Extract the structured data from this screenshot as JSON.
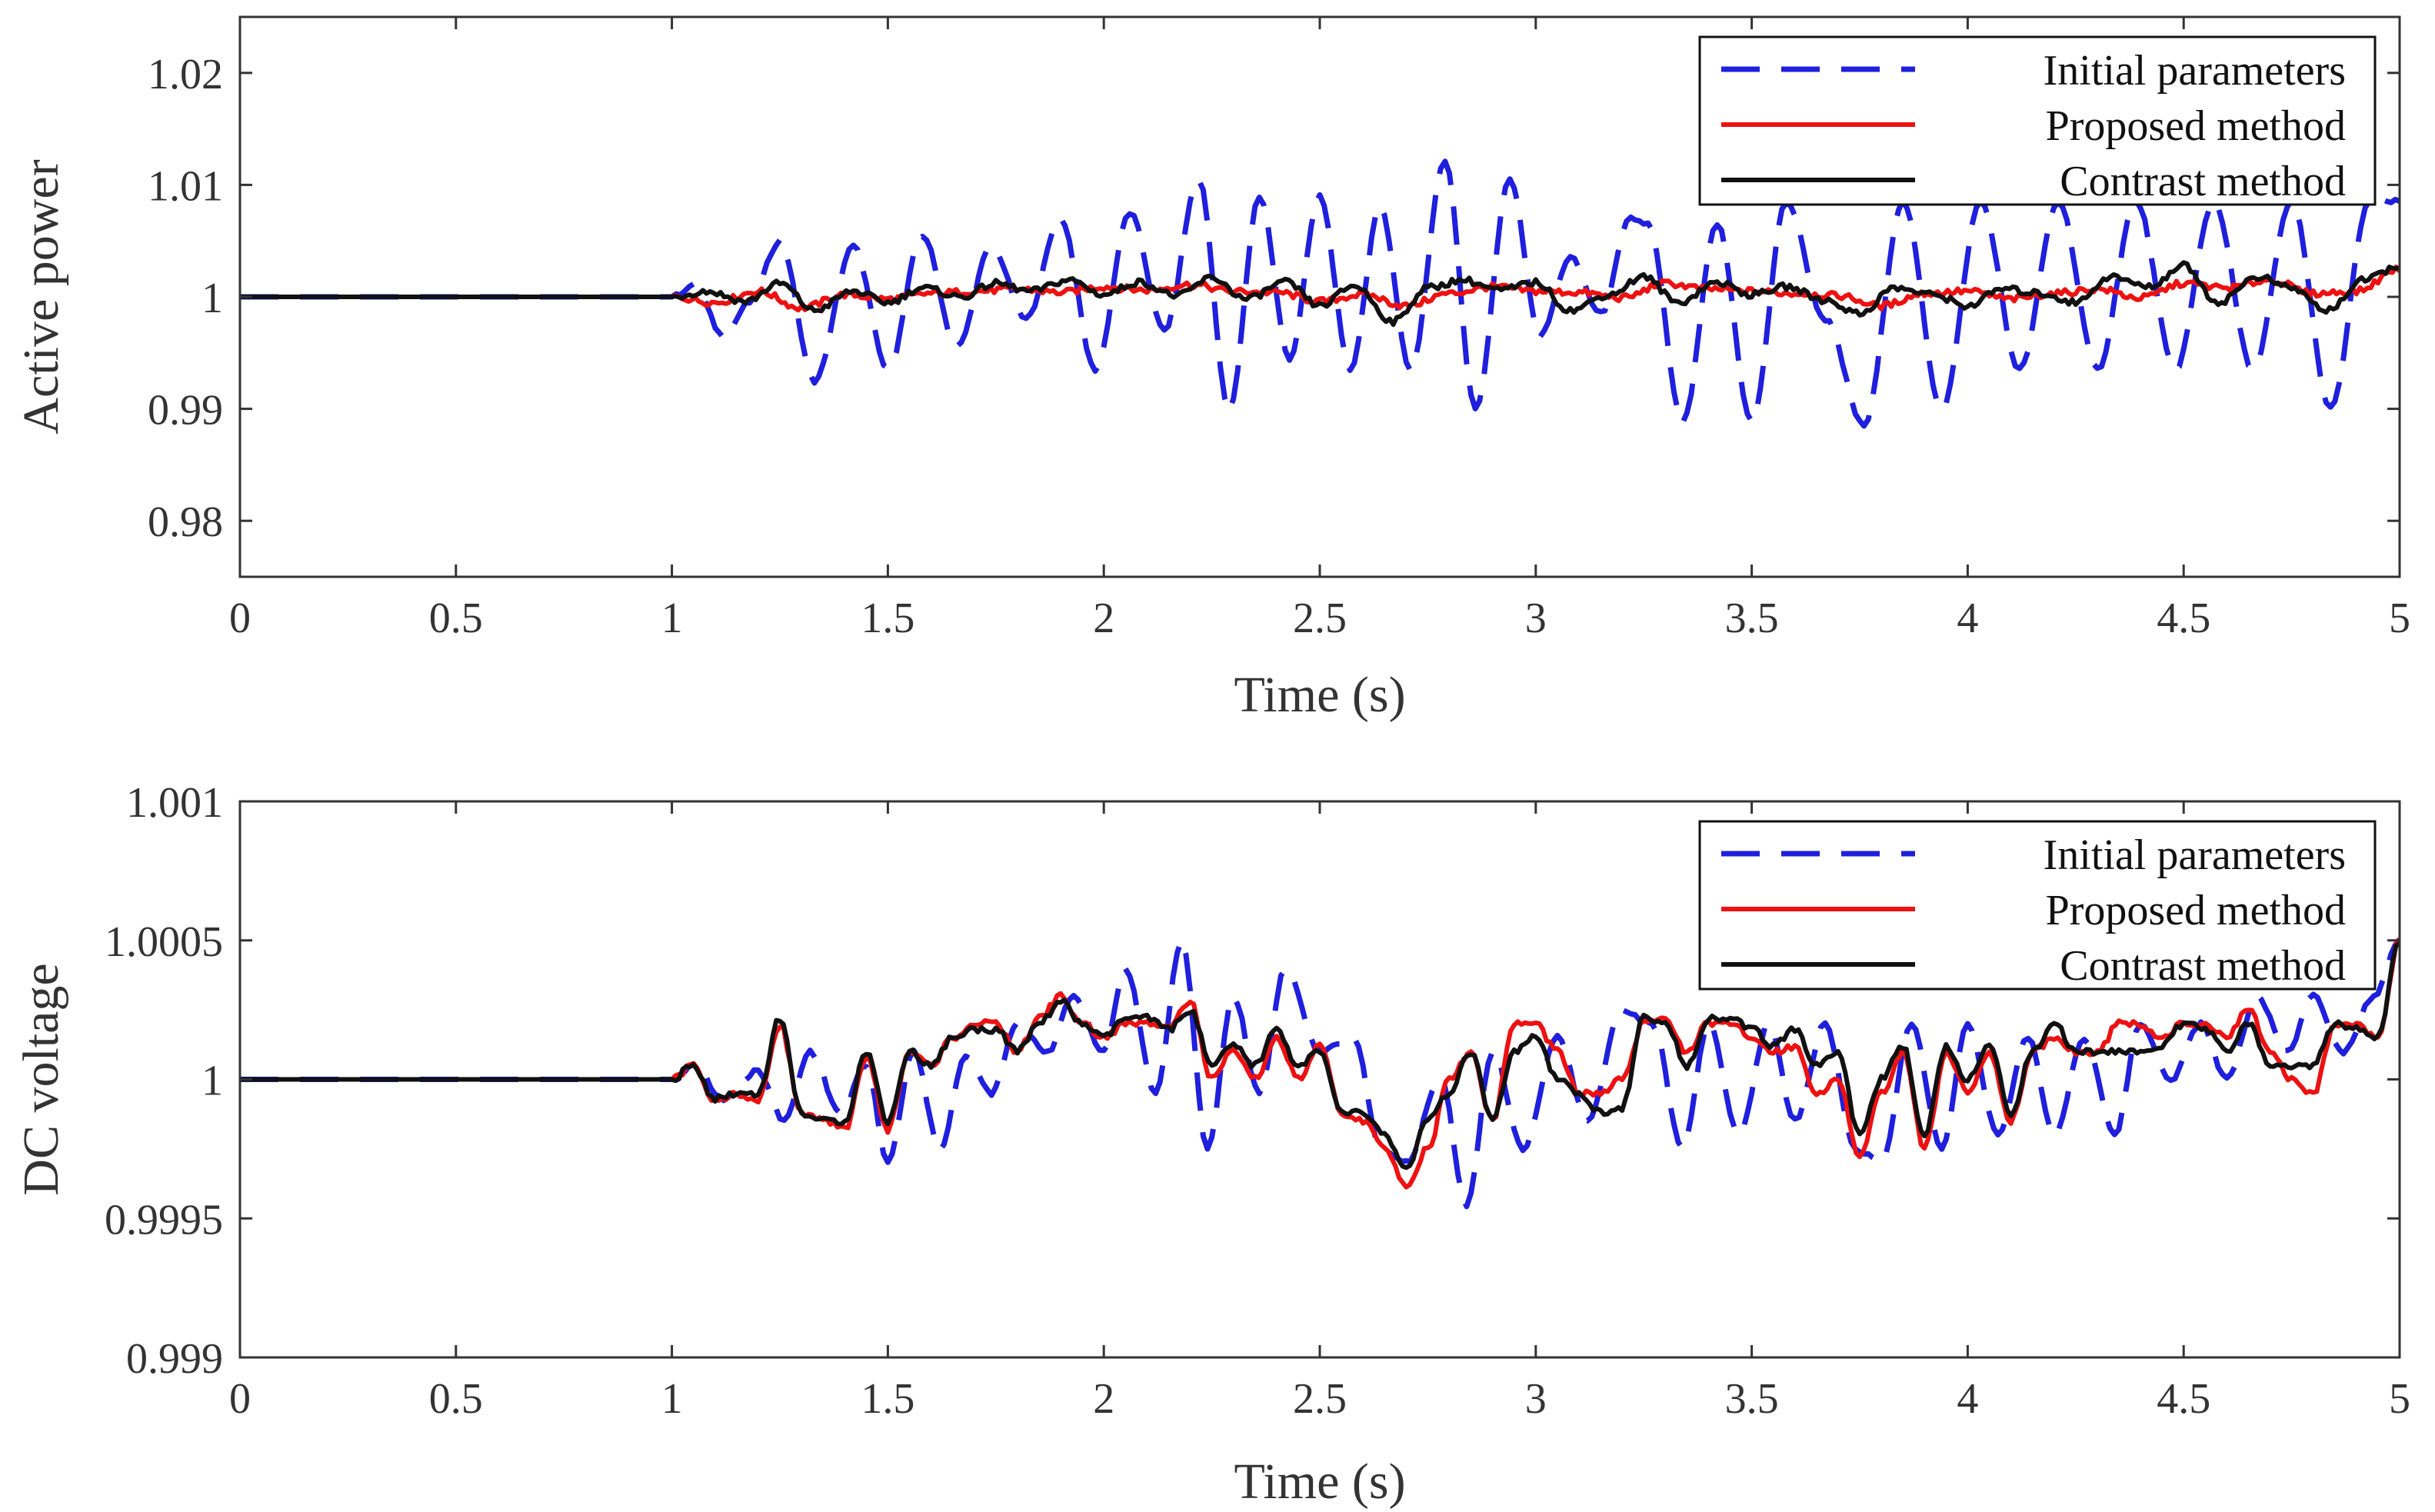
{
  "chart_data": [
    {
      "type": "line",
      "title": "",
      "xlabel": "Time (s)",
      "ylabel": "Active power",
      "xlim": [
        0,
        5
      ],
      "ylim": [
        0.975,
        1.025
      ],
      "xticks": [
        0,
        0.5,
        1,
        1.5,
        2,
        2.5,
        3,
        3.5,
        4,
        4.5,
        5
      ],
      "xtick_labels": [
        "0",
        "0.5",
        "1",
        "1.5",
        "2",
        "2.5",
        "3",
        "3.5",
        "4",
        "4.5",
        "5"
      ],
      "yticks": [
        0.98,
        0.99,
        1,
        1.01,
        1.02
      ],
      "ytick_labels": [
        "0.98",
        "0.99",
        "1",
        "1.01",
        "1.02"
      ],
      "grid": false,
      "legend_position": "top-right",
      "series": [
        {
          "name": "Initial parameters",
          "color": "#1f1fdd",
          "style": "dashed",
          "x": [
            0,
            1.0,
            1.05,
            1.12,
            1.18,
            1.25,
            1.33,
            1.42,
            1.5,
            1.58,
            1.66,
            1.74,
            1.82,
            1.9,
            1.98,
            2.06,
            2.14,
            2.22,
            2.29,
            2.36,
            2.43,
            2.5,
            2.57,
            2.64,
            2.71,
            2.79,
            2.86,
            2.94,
            3.01,
            3.08,
            3.15,
            3.22,
            3.26,
            3.34,
            3.42,
            3.5,
            3.58,
            3.67,
            3.76,
            3.85,
            3.94,
            4.03,
            4.12,
            4.21,
            4.3,
            4.39,
            4.48,
            4.57,
            4.66,
            4.75,
            4.84,
            4.93,
            5.0
          ],
          "y": [
            1.0,
            1.0,
            1.001,
            0.9965,
            0.9995,
            1.005,
            0.9925,
            1.0045,
            0.9935,
            1.0055,
            0.9955,
            1.0045,
            0.998,
            1.007,
            0.9935,
            1.0075,
            0.997,
            1.0105,
            0.9898,
            1.009,
            0.9945,
            1.009,
            0.9935,
            1.008,
            0.9935,
            1.0122,
            0.99,
            1.0105,
            0.9965,
            1.0035,
            0.9985,
            1.007,
            1.0065,
            0.9888,
            1.0065,
            0.9888,
            1.0085,
            0.998,
            0.9885,
            1.0085,
            0.99,
            1.0085,
            0.9935,
            1.0085,
            0.9935,
            1.0085,
            0.9935,
            1.0085,
            0.9935,
            1.0085,
            0.99,
            1.0085,
            1.0085
          ]
        },
        {
          "name": "Proposed method",
          "color": "#ee1111",
          "style": "solid",
          "x": [
            0,
            1.0,
            1.1,
            1.2,
            1.3,
            1.4,
            1.5,
            1.6,
            1.7,
            1.8,
            1.9,
            2.0,
            2.1,
            2.2,
            2.3,
            2.4,
            2.5,
            2.6,
            2.7,
            2.8,
            2.9,
            3.0,
            3.1,
            3.2,
            3.3,
            3.4,
            3.5,
            3.6,
            3.7,
            3.8,
            3.9,
            4.0,
            4.1,
            4.2,
            4.3,
            4.4,
            4.5,
            4.6,
            4.7,
            4.8,
            4.9,
            5.0
          ],
          "y": [
            1.0,
            1.0,
            0.9995,
            1.0005,
            0.999,
            1.0002,
            0.9998,
            1.0003,
            1.0005,
            1.0007,
            1.0004,
            1.0009,
            1.0006,
            1.0011,
            1.0005,
            1.0004,
            0.9996,
            1.0002,
            0.9992,
            1.0003,
            1.0009,
            1.0005,
            1.0004,
            0.9999,
            1.0012,
            1.0007,
            1.0005,
            1.0003,
            1.0001,
            0.9992,
            1.0003,
            1.0005,
            0.9998,
            1.0003,
            1.0007,
            0.9999,
            1.0012,
            1.0008,
            1.0015,
            1.0003,
            1.0005,
            1.0025
          ]
        },
        {
          "name": "Contrast method",
          "color": "#111111",
          "style": "solid",
          "x": [
            0,
            1.0,
            1.08,
            1.17,
            1.25,
            1.33,
            1.42,
            1.5,
            1.58,
            1.67,
            1.75,
            1.83,
            1.92,
            2.0,
            2.08,
            2.17,
            2.25,
            2.33,
            2.42,
            2.5,
            2.58,
            2.67,
            2.75,
            2.83,
            2.92,
            3.0,
            3.08,
            3.17,
            3.25,
            3.33,
            3.42,
            3.5,
            3.58,
            3.67,
            3.75,
            3.83,
            3.92,
            4.0,
            4.08,
            4.17,
            4.25,
            4.33,
            4.42,
            4.5,
            4.58,
            4.67,
            4.75,
            4.83,
            4.92,
            5.0
          ],
          "y": [
            1.0,
            1.0,
            1.0005,
            0.9996,
            1.0012,
            0.9988,
            1.0005,
            0.9995,
            1.0008,
            1.0,
            1.0012,
            1.0005,
            1.0015,
            1.0002,
            1.0013,
            1.0001,
            1.0017,
            0.9998,
            1.0013,
            0.9992,
            1.001,
            0.9978,
            1.0008,
            1.0015,
            1.0006,
            1.0013,
            0.9988,
            1.0002,
            1.0018,
            0.9995,
            1.0013,
            1.0002,
            1.0009,
            0.9997,
            0.9985,
            1.0008,
            1.0002,
            0.9992,
            1.0007,
            1.0003,
            0.9995,
            1.0018,
            1.0009,
            1.0028,
            0.9995,
            1.0018,
            1.0008,
            0.9988,
            1.0015,
            1.0028
          ]
        }
      ]
    },
    {
      "type": "line",
      "title": "",
      "xlabel": "Time (s)",
      "ylabel": "DC voltage",
      "xlim": [
        0,
        5
      ],
      "ylim": [
        0.999,
        1.001
      ],
      "xticks": [
        0,
        0.5,
        1,
        1.5,
        2,
        2.5,
        3,
        3.5,
        4,
        4.5,
        5
      ],
      "xtick_labels": [
        "0",
        "0.5",
        "1",
        "1.5",
        "2",
        "2.5",
        "3",
        "3.5",
        "4",
        "4.5",
        "5"
      ],
      "yticks": [
        0.999,
        0.9995,
        1,
        1.0005,
        1.001
      ],
      "ytick_labels": [
        "0.999",
        "0.9995",
        "1",
        "1.0005",
        "1.001"
      ],
      "grid": false,
      "legend_position": "top-right",
      "series": [
        {
          "name": "Initial parameters",
          "color": "#1f1fdd",
          "style": "dashed",
          "x": [
            0,
            1.0,
            1.05,
            1.12,
            1.2,
            1.26,
            1.32,
            1.39,
            1.45,
            1.5,
            1.56,
            1.62,
            1.68,
            1.74,
            1.8,
            1.87,
            1.93,
            2.0,
            2.05,
            2.12,
            2.18,
            2.24,
            2.3,
            2.36,
            2.42,
            2.5,
            2.58,
            2.64,
            2.7,
            2.78,
            2.84,
            2.9,
            2.97,
            3.05,
            3.12,
            3.2,
            3.27,
            3.34,
            3.4,
            3.47,
            3.54,
            3.6,
            3.67,
            3.74,
            3.8,
            3.87,
            3.94,
            4.0,
            4.07,
            4.14,
            4.2,
            4.27,
            4.34,
            4.4,
            4.47,
            4.54,
            4.6,
            4.67,
            4.74,
            4.8,
            4.87,
            4.94,
            5.0
          ],
          "y": [
            1.0,
            1.0,
            1.00005,
            0.99993,
            1.00003,
            0.99985,
            1.0001,
            0.99988,
            1.00005,
            0.9997,
            1.0001,
            0.99975,
            1.00008,
            0.99995,
            1.0002,
            1.0001,
            1.0003,
            1.0001,
            1.0004,
            0.99995,
            1.0005,
            0.99975,
            1.0003,
            0.99995,
            1.0004,
            1.0001,
            1.00015,
            0.99975,
            0.9997,
            1.0,
            0.99955,
            1.0001,
            0.99975,
            1.00015,
            0.99985,
            1.00025,
            1.0002,
            0.99975,
            1.0002,
            0.9998,
            1.0002,
            0.99985,
            1.0002,
            0.99975,
            0.9997,
            1.0002,
            0.99975,
            1.0002,
            0.9998,
            1.00015,
            0.9998,
            1.00015,
            0.9998,
            1.0002,
            1.0,
            1.0002,
            1.0,
            1.0003,
            1.0001,
            1.0003,
            1.0001,
            1.0003,
            1.0005
          ]
        },
        {
          "name": "Proposed method",
          "color": "#ee1111",
          "style": "solid",
          "x": [
            0,
            1.0,
            1.05,
            1.1,
            1.15,
            1.2,
            1.25,
            1.3,
            1.35,
            1.4,
            1.45,
            1.5,
            1.55,
            1.6,
            1.65,
            1.7,
            1.75,
            1.8,
            1.85,
            1.9,
            1.95,
            2.0,
            2.05,
            2.1,
            2.15,
            2.2,
            2.25,
            2.3,
            2.35,
            2.4,
            2.45,
            2.5,
            2.55,
            2.6,
            2.65,
            2.7,
            2.75,
            2.8,
            2.85,
            2.9,
            2.95,
            3.0,
            3.05,
            3.1,
            3.15,
            3.2,
            3.25,
            3.3,
            3.35,
            3.4,
            3.45,
            3.5,
            3.55,
            3.6,
            3.65,
            3.7,
            3.75,
            3.8,
            3.85,
            3.9,
            3.95,
            4.0,
            4.05,
            4.1,
            4.15,
            4.2,
            4.25,
            4.3,
            4.35,
            4.4,
            4.45,
            4.5,
            4.55,
            4.6,
            4.65,
            4.7,
            4.75,
            4.8,
            4.85,
            4.9,
            4.95,
            5.0
          ],
          "y": [
            1.0,
            1.0,
            1.00005,
            0.99992,
            0.99995,
            0.99992,
            1.0002,
            0.99988,
            0.99985,
            0.99982,
            1.00008,
            0.99982,
            1.0001,
            1.00005,
            1.00015,
            1.0002,
            1.0002,
            1.0001,
            1.00022,
            1.0003,
            1.0002,
            1.00015,
            1.0002,
            1.0002,
            1.0002,
            1.00028,
            1.0,
            1.0001,
            1.0,
            1.00015,
            1.0,
            1.00012,
            0.99988,
            0.99985,
            0.99975,
            0.99962,
            0.99975,
            1.0,
            1.0001,
            0.99985,
            1.0002,
            1.0002,
            1.0001,
            0.99995,
            0.99995,
            1.0,
            1.0002,
            1.00022,
            1.0001,
            1.0002,
            1.0002,
            1.00015,
            1.0001,
            1.00012,
            0.99995,
            1.0,
            0.99972,
            0.99995,
            1.0001,
            0.99975,
            1.0001,
            0.99995,
            1.0001,
            0.99985,
            1.0001,
            1.00015,
            1.0001,
            1.0001,
            1.0002,
            1.0002,
            1.00015,
            1.0002,
            1.0002,
            1.00015,
            1.00025,
            1.0001,
            1.0,
            0.99995,
            1.0002,
            1.0002,
            1.00015,
            1.0005
          ]
        },
        {
          "name": "Contrast method",
          "color": "#111111",
          "style": "solid",
          "x": [
            0,
            1.0,
            1.05,
            1.1,
            1.15,
            1.2,
            1.25,
            1.3,
            1.35,
            1.4,
            1.45,
            1.5,
            1.55,
            1.6,
            1.65,
            1.7,
            1.75,
            1.8,
            1.85,
            1.9,
            1.95,
            2.0,
            2.05,
            2.1,
            2.15,
            2.2,
            2.25,
            2.3,
            2.35,
            2.4,
            2.45,
            2.5,
            2.55,
            2.6,
            2.65,
            2.7,
            2.75,
            2.8,
            2.85,
            2.9,
            2.95,
            3.0,
            3.05,
            3.1,
            3.15,
            3.2,
            3.25,
            3.3,
            3.35,
            3.4,
            3.45,
            3.5,
            3.55,
            3.6,
            3.65,
            3.7,
            3.75,
            3.8,
            3.85,
            3.9,
            3.95,
            4.0,
            4.05,
            4.1,
            4.15,
            4.2,
            4.25,
            4.3,
            4.35,
            4.4,
            4.45,
            4.5,
            4.55,
            4.6,
            4.65,
            4.7,
            4.75,
            4.8,
            4.85,
            4.9,
            4.95,
            5.0
          ],
          "y": [
            1.0,
            1.0,
            1.00005,
            0.99993,
            0.99995,
            0.99995,
            1.00022,
            0.99988,
            0.99985,
            0.99985,
            1.0001,
            0.99985,
            1.0001,
            1.00005,
            1.00015,
            1.00018,
            1.00018,
            1.0001,
            1.0002,
            1.00028,
            1.0002,
            1.00015,
            1.00022,
            1.00022,
            1.00018,
            1.00025,
            1.00005,
            1.00012,
            1.00005,
            1.00018,
            1.00005,
            1.0001,
            0.99988,
            0.99988,
            0.9998,
            0.99968,
            0.99985,
            0.99995,
            1.0001,
            0.99985,
            1.0001,
            1.00015,
            1.0,
            0.99995,
            0.99988,
            0.9999,
            1.00022,
            1.0002,
            1.00005,
            1.00022,
            1.00022,
            1.00018,
            1.00012,
            1.00018,
            1.00005,
            1.0001,
            0.9998,
            1.0,
            1.00012,
            0.9998,
            1.00012,
            1.0,
            1.00012,
            0.99988,
            1.0001,
            1.0002,
            1.0001,
            1.0001,
            1.0001,
            1.0001,
            1.00012,
            1.0002,
            1.00018,
            1.0001,
            1.0002,
            1.00005,
            1.00005,
            1.00005,
            1.0002,
            1.00018,
            1.00015,
            1.0005
          ]
        }
      ]
    }
  ]
}
